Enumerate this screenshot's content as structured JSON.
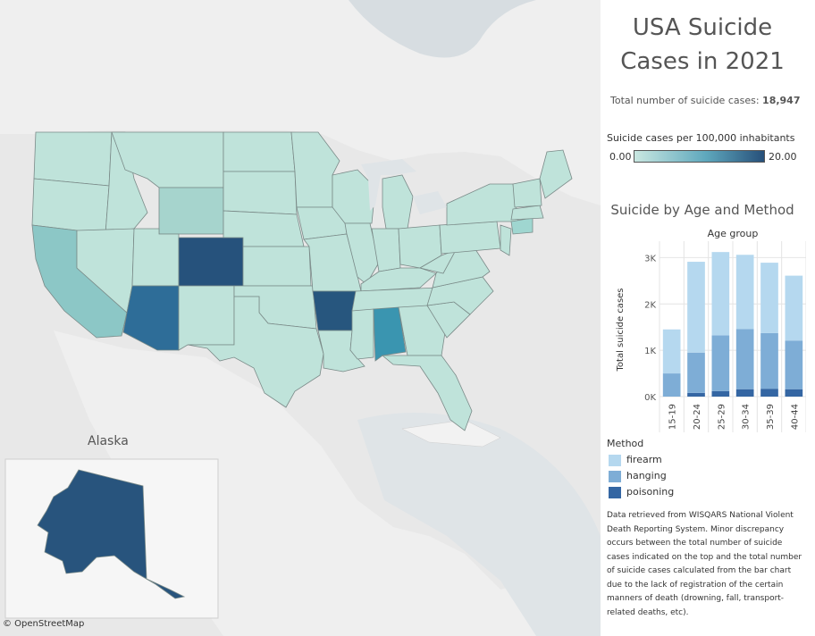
{
  "map": {
    "alaska_title": "Alaska",
    "attribution": "© OpenStreetMap",
    "color_scale": {
      "min_color": "#c9e7e1",
      "max_color": "#27507a",
      "min": 0,
      "max": 20
    },
    "state_fills": {
      "default": "#bfe3da",
      "wyoming": "#a6d4cd",
      "california": "#8cc7c6",
      "connecticut": "#9fd6d0",
      "alabama": "#3a95b0",
      "colorado": "#26527c",
      "arizona": "#2e6d98",
      "arkansas": "#27567e",
      "alaska": "#28547d"
    },
    "state_values": {
      "wyoming": 3,
      "california": 5,
      "connecticut": 4,
      "alabama": 12,
      "colorado": 19,
      "arizona": 17,
      "arkansas": 18,
      "alaska": 18
    }
  },
  "panel": {
    "title_line1": "USA Suicide",
    "title_line2": "Cases in 2021",
    "total_label": "Total number of suicide cases:",
    "total_value": "18,947",
    "legend_title": "Suicide cases per 100,000 inhabitants",
    "legend_min": "0.00",
    "legend_max": "20.00",
    "bar_title": "Suicide by Age and Method",
    "method_title": "Method",
    "methods": [
      {
        "label": "firearm",
        "color": "#b5d8ef"
      },
      {
        "label": "hanging",
        "color": "#7eadd6"
      },
      {
        "label": "poisoning",
        "color": "#3466a3"
      }
    ],
    "note": "Data retrieved from WISQARS National Violent Death Reporting System. Minor discrepancy occurs between the total number of suicide cases indicated on the top and the total number of suicide cases calculated from the bar chart due to the lack of registration of the certain manners of death (drowning, fall, transport-related deaths, etc)."
  },
  "chart_data": {
    "type": "bar",
    "stacked": true,
    "title": "Suicide by Age and Method",
    "column_header": "Age group",
    "ylabel": "Total suicide cases",
    "categories": [
      "15-19",
      "20-24",
      "25-29",
      "30-34",
      "35-39",
      "40-44"
    ],
    "y_ticks": [
      "0K",
      "1K",
      "2K",
      "3K"
    ],
    "ylim": [
      0,
      3200
    ],
    "series": [
      {
        "name": "poisoning",
        "color": "#3466a3",
        "values": [
          0,
          80,
          120,
          160,
          170,
          160
        ]
      },
      {
        "name": "hanging",
        "color": "#7eadd6",
        "values": [
          500,
          870,
          1200,
          1300,
          1200,
          1050
        ]
      },
      {
        "name": "firearm",
        "color": "#b5d8ef",
        "values": [
          950,
          1960,
          1800,
          1600,
          1520,
          1400
        ]
      }
    ]
  }
}
